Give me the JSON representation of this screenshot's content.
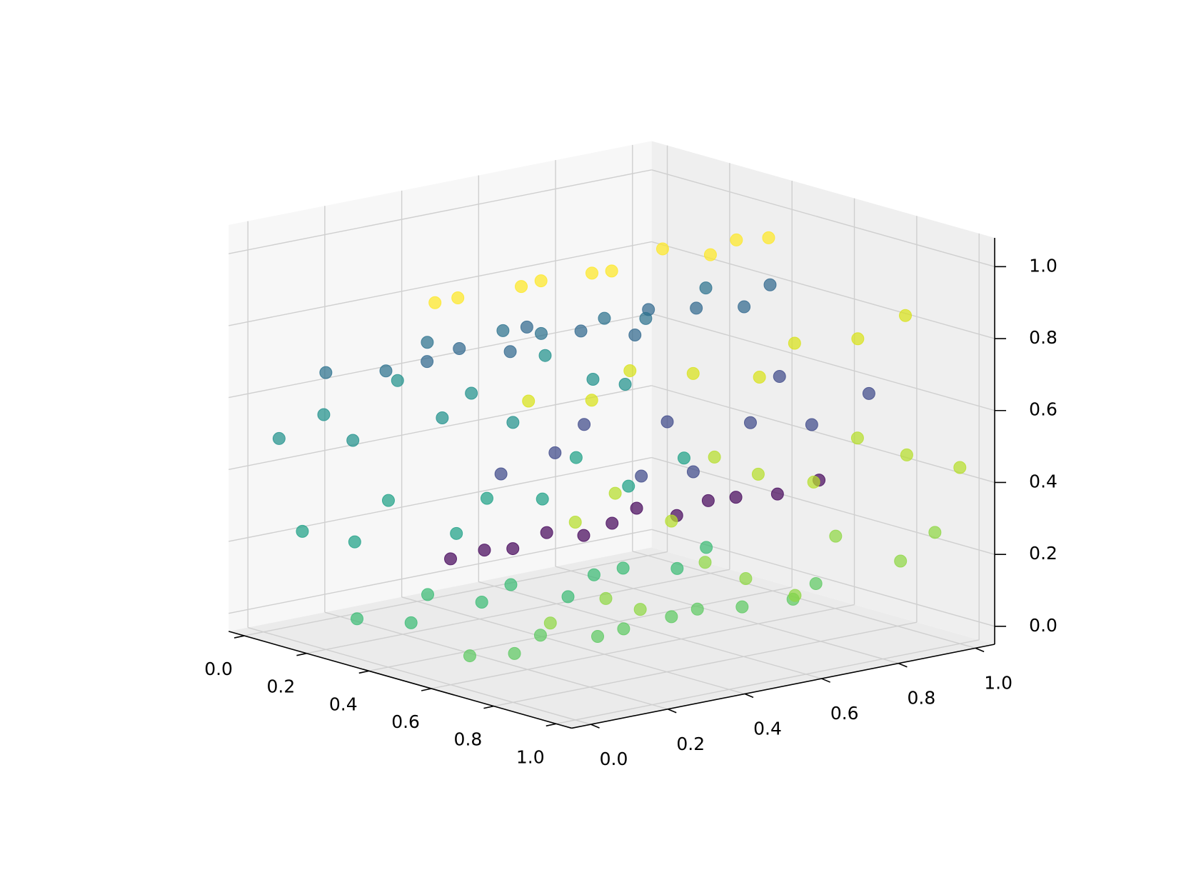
{
  "chart_data": {
    "type": "scatter3d",
    "xlim": [
      -0.05,
      1.05
    ],
    "ylim": [
      -0.05,
      1.05
    ],
    "zlim": [
      -0.05,
      1.08
    ],
    "xticks": [
      {
        "value": 0,
        "label": "0.0"
      },
      0.2,
      0.4,
      0.6,
      0.8,
      {
        "value": 1,
        "label": "1.0"
      }
    ],
    "yticks": [
      {
        "value": 0,
        "label": "0.0"
      },
      0.2,
      0.4,
      0.6,
      0.8,
      {
        "value": 1,
        "label": "1.0"
      }
    ],
    "zticks": [
      {
        "value": 0,
        "label": "0.0"
      },
      0.2,
      0.4,
      0.6,
      0.8,
      {
        "value": 1,
        "label": "1.0"
      }
    ],
    "grid": true,
    "series": [
      {
        "color": "#46085c",
        "x": [
          0.6,
          0.61,
          0.59,
          0.6,
          0.62,
          0.6,
          0.58,
          0.61,
          0.6,
          0.59,
          0.6,
          0.61
        ],
        "y": [
          0.0,
          0.08,
          0.17,
          0.25,
          0.33,
          0.42,
          0.5,
          0.58,
          0.67,
          0.75,
          0.85,
          0.95
        ],
        "z": [
          0.3,
          0.31,
          0.29,
          0.32,
          0.3,
          0.31,
          0.33,
          0.3,
          0.32,
          0.31,
          0.3,
          0.32
        ]
      },
      {
        "color": "#3e4989",
        "x": [
          0.7,
          0.75,
          0.72,
          0.78,
          0.74,
          0.7,
          0.76,
          0.73,
          0.71,
          0.77
        ],
        "y": [
          0.05,
          0.15,
          0.25,
          0.35,
          0.45,
          0.55,
          0.65,
          0.75,
          0.85,
          0.95
        ],
        "z": [
          0.55,
          0.6,
          0.65,
          0.5,
          0.62,
          0.45,
          0.58,
          0.68,
          0.52,
          0.6
        ]
      },
      {
        "color": "#31688e",
        "x": [
          0.5,
          0.48,
          0.52,
          0.45,
          0.5,
          0.55,
          0.47,
          0.5,
          0.53,
          0.49
        ],
        "y": [
          0.02,
          0.12,
          0.22,
          0.32,
          0.42,
          0.52,
          0.62,
          0.72,
          0.82,
          0.92
        ],
        "z": [
          0.82,
          0.83,
          0.81,
          0.84,
          0.82,
          0.8,
          0.83,
          0.82,
          0.81,
          0.84
        ]
      },
      {
        "color": "#2c728e",
        "x": [
          0.2,
          0.22,
          0.18,
          0.25,
          0.2,
          0.23,
          0.19,
          0.21
        ],
        "y": [
          0.0,
          0.14,
          0.28,
          0.42,
          0.56,
          0.7,
          0.84,
          0.98
        ],
        "z": [
          0.72,
          0.7,
          0.74,
          0.76,
          0.71,
          0.73,
          0.69,
          0.75
        ]
      },
      {
        "color": "#21918c",
        "x": [
          0.05,
          0.07,
          0.04,
          0.06,
          0.08,
          0.05,
          0.06,
          0.04,
          0.07,
          0.05
        ],
        "y": [
          0.0,
          0.1,
          0.2,
          0.3,
          0.4,
          0.5,
          0.6,
          0.7,
          0.8,
          0.9
        ],
        "z": [
          0.5,
          0.55,
          0.45,
          0.6,
          0.48,
          0.52,
          0.42,
          0.58,
          0.5,
          0.46
        ]
      },
      {
        "color": "#1fa187",
        "x": [
          0.1,
          0.12,
          0.08,
          0.15,
          0.1,
          0.13,
          0.09,
          0.11,
          0.14
        ],
        "y": [
          0.02,
          0.14,
          0.26,
          0.38,
          0.5,
          0.62,
          0.74,
          0.86,
          0.98
        ],
        "z": [
          0.25,
          0.2,
          0.28,
          0.18,
          0.24,
          0.22,
          0.3,
          0.2,
          0.26
        ]
      },
      {
        "color": "#3bbb75",
        "x": [
          0.3,
          0.35,
          0.28,
          0.33,
          0.3,
          0.36,
          0.32,
          0.29,
          0.34,
          0.31
        ],
        "y": [
          0.0,
          0.1,
          0.2,
          0.3,
          0.4,
          0.5,
          0.6,
          0.7,
          0.8,
          0.9
        ],
        "z": [
          0.06,
          0.04,
          0.08,
          0.05,
          0.07,
          0.03,
          0.06,
          0.05,
          0.04,
          0.07
        ]
      },
      {
        "color": "#5ec962",
        "x": [
          0.6,
          0.62,
          0.58,
          0.64,
          0.6,
          0.63,
          0.59,
          0.61,
          0.65,
          0.6
        ],
        "y": [
          0.05,
          0.15,
          0.25,
          0.35,
          0.45,
          0.55,
          0.65,
          0.75,
          0.85,
          0.95
        ],
        "z": [
          0.02,
          0.01,
          0.03,
          0.02,
          0.01,
          0.03,
          0.02,
          0.01,
          0.02,
          0.03
        ]
      },
      {
        "color": "#8fd744",
        "x": [
          0.92,
          0.95,
          0.9,
          0.96,
          0.93,
          0.94,
          0.91,
          0.97,
          0.92
        ],
        "y": [
          0.0,
          0.12,
          0.25,
          0.37,
          0.5,
          0.62,
          0.75,
          0.87,
          1.0
        ],
        "z": [
          0.2,
          0.25,
          0.18,
          0.3,
          0.22,
          0.15,
          0.28,
          0.2,
          0.24
        ]
      },
      {
        "color": "#b5de2b",
        "x": [
          1.0,
          0.98,
          1.0,
          0.99,
          0.97,
          1.0,
          0.98,
          0.99,
          1.0
        ],
        "y": [
          0.0,
          0.12,
          0.25,
          0.37,
          0.5,
          0.62,
          0.75,
          0.87,
          1.0
        ],
        "z": [
          0.5,
          0.55,
          0.45,
          0.6,
          0.52,
          0.48,
          0.57,
          0.5,
          0.44
        ]
      },
      {
        "color": "#d8e219",
        "x": [
          0.85,
          0.88,
          0.83,
          0.86,
          0.9,
          0.84,
          0.87,
          0.85
        ],
        "y": [
          0.0,
          0.14,
          0.28,
          0.42,
          0.56,
          0.7,
          0.84,
          0.98
        ],
        "z": [
          0.8,
          0.78,
          0.82,
          0.79,
          0.76,
          0.81,
          0.8,
          0.83
        ]
      },
      {
        "color": "#fde725",
        "x": [
          0.55,
          0.5,
          0.58,
          0.52,
          0.56,
          0.5,
          0.54,
          0.57,
          0.53,
          0.51
        ],
        "y": [
          0.0,
          0.1,
          0.2,
          0.3,
          0.4,
          0.5,
          0.6,
          0.7,
          0.8,
          0.9
        ],
        "z": [
          1.0,
          0.98,
          1.01,
          0.99,
          1.0,
          0.97,
          1.02,
          0.99,
          1.0,
          0.98
        ]
      }
    ]
  }
}
